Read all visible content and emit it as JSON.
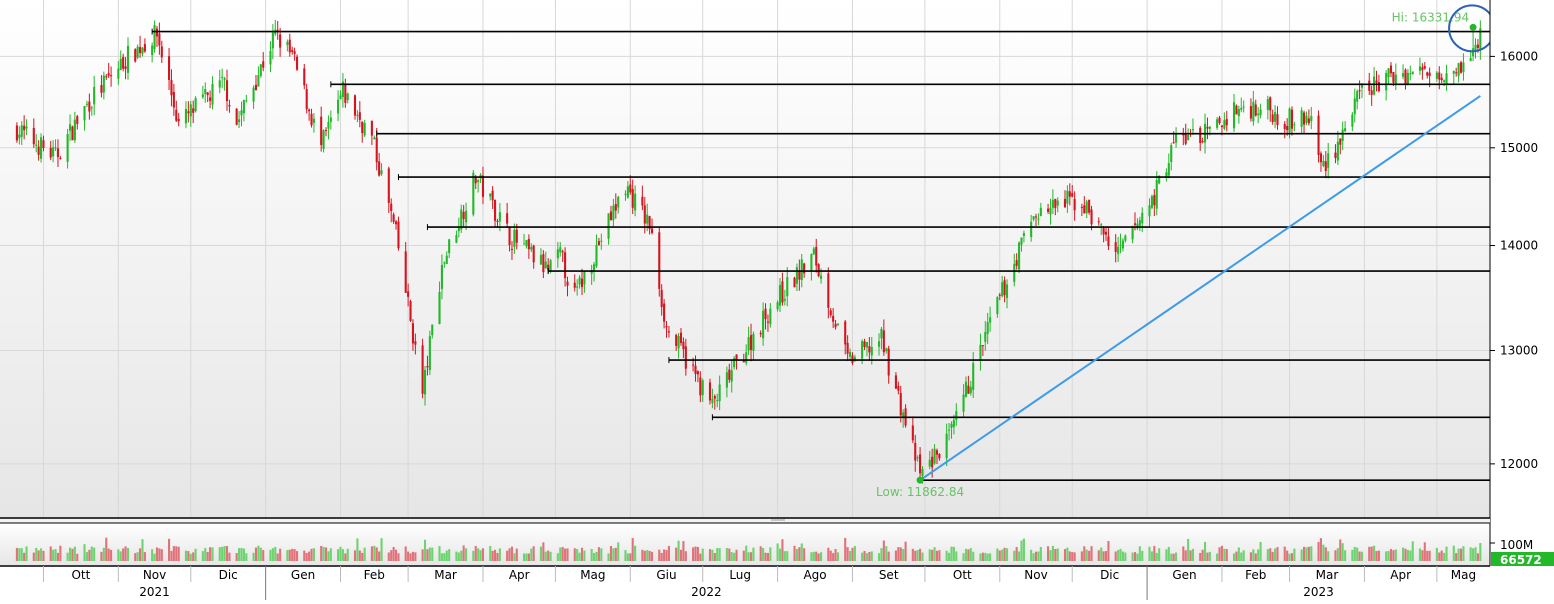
{
  "chart_data": {
    "type": "candlestick",
    "y_scale": "log",
    "ylim": [
      11550,
      16650
    ],
    "y_ticks": [
      {
        "value": 16000,
        "label": "16000"
      },
      {
        "value": 15000,
        "label": "15000"
      },
      {
        "value": 14000,
        "label": "14000"
      },
      {
        "value": 13000,
        "label": "13000"
      },
      {
        "value": 12000,
        "label": "12000"
      }
    ],
    "levels": [
      {
        "value": 16282.54,
        "label": "16282.54",
        "from": "2021-11-15"
      },
      {
        "value": 15687.96,
        "label": "15687.96",
        "from": "2022-01-28"
      },
      {
        "value": 15150.54,
        "label": "15150.54",
        "from": "2022-02-16"
      },
      {
        "value": 14693.0,
        "label": "14693.00",
        "from": "2022-02-25"
      },
      {
        "value": 14183.26,
        "label": "14183.26",
        "from": "2022-03-09"
      },
      {
        "value": 13749.68,
        "label": "13749.68",
        "from": "2022-04-28"
      },
      {
        "value": 12912.59,
        "label": "12912.59",
        "from": "2022-06-17"
      },
      {
        "value": 12401.2,
        "label": "12401.20",
        "from": "2022-07-05"
      },
      {
        "value": 11862.84,
        "label": "11862.84",
        "from": "2022-09-29"
      }
    ],
    "trendline": {
      "start": {
        "date": "2022-09-29",
        "value": 11862.84
      },
      "end": {
        "date": "2023-05-19",
        "value": 15560
      }
    },
    "high": {
      "label": "Hi: 16331.94",
      "date": "2023-05-16",
      "value": 16331.94
    },
    "low": {
      "label": "Low: 11862.84",
      "date": "2022-09-29",
      "value": 11862.84
    },
    "volume": {
      "label": "100M",
      "last_label": "66572",
      "ref_value": 100000000
    },
    "months": [
      "Ott",
      "Nov",
      "Dic",
      "Gen",
      "Feb",
      "Mar",
      "Apr",
      "Mag",
      "Giu",
      "Lug",
      "Ago",
      "Set",
      "Ott",
      "Nov",
      "Dic",
      "Gen",
      "Feb",
      "Mar",
      "Apr",
      "Mag"
    ],
    "years": [
      "2021",
      "2022",
      "2023"
    ],
    "anchors": [
      [
        "2021-09-20",
        15200
      ],
      [
        "2021-10-06",
        14900
      ],
      [
        "2021-10-20",
        15500
      ],
      [
        "2021-11-05",
        16000
      ],
      [
        "2021-11-17",
        16250
      ],
      [
        "2021-11-26",
        15250
      ],
      [
        "2021-12-06",
        15500
      ],
      [
        "2021-12-15",
        15700
      ],
      [
        "2021-12-20",
        15250
      ],
      [
        "2022-01-05",
        16250
      ],
      [
        "2022-01-12",
        16000
      ],
      [
        "2022-01-24",
        15000
      ],
      [
        "2022-02-02",
        15600
      ],
      [
        "2022-02-14",
        15100
      ],
      [
        "2022-02-24",
        14100
      ],
      [
        "2022-03-07",
        12600
      ],
      [
        "2022-03-15",
        13800
      ],
      [
        "2022-03-29",
        14700
      ],
      [
        "2022-04-12",
        14100
      ],
      [
        "2022-04-28",
        13750
      ],
      [
        "2022-05-03",
        13900
      ],
      [
        "2022-05-09",
        13500
      ],
      [
        "2022-05-30",
        14600
      ],
      [
        "2022-06-09",
        14200
      ],
      [
        "2022-06-16",
        13200
      ],
      [
        "2022-06-22",
        13000
      ],
      [
        "2022-07-05",
        12500
      ],
      [
        "2022-07-13",
        12800
      ],
      [
        "2022-07-29",
        13400
      ],
      [
        "2022-08-16",
        13900
      ],
      [
        "2022-08-30",
        12900
      ],
      [
        "2022-09-13",
        13100
      ],
      [
        "2022-09-29",
        11900
      ],
      [
        "2022-10-12",
        12250
      ],
      [
        "2022-10-28",
        13250
      ],
      [
        "2022-11-15",
        14300
      ],
      [
        "2022-11-30",
        14450
      ],
      [
        "2022-12-06",
        14400
      ],
      [
        "2022-12-20",
        13900
      ],
      [
        "2023-01-04",
        14500
      ],
      [
        "2023-01-13",
        15100
      ],
      [
        "2023-01-27",
        15150
      ],
      [
        "2023-02-06",
        15400
      ],
      [
        "2023-02-17",
        15450
      ],
      [
        "2023-02-28",
        15300
      ],
      [
        "2023-03-10",
        15300
      ],
      [
        "2023-03-14",
        14800
      ],
      [
        "2023-03-20",
        15000
      ],
      [
        "2023-03-31",
        15600
      ],
      [
        "2023-04-14",
        15800
      ],
      [
        "2023-05-04",
        15850
      ],
      [
        "2023-05-15",
        15950
      ],
      [
        "2023-05-19",
        16250
      ]
    ]
  }
}
